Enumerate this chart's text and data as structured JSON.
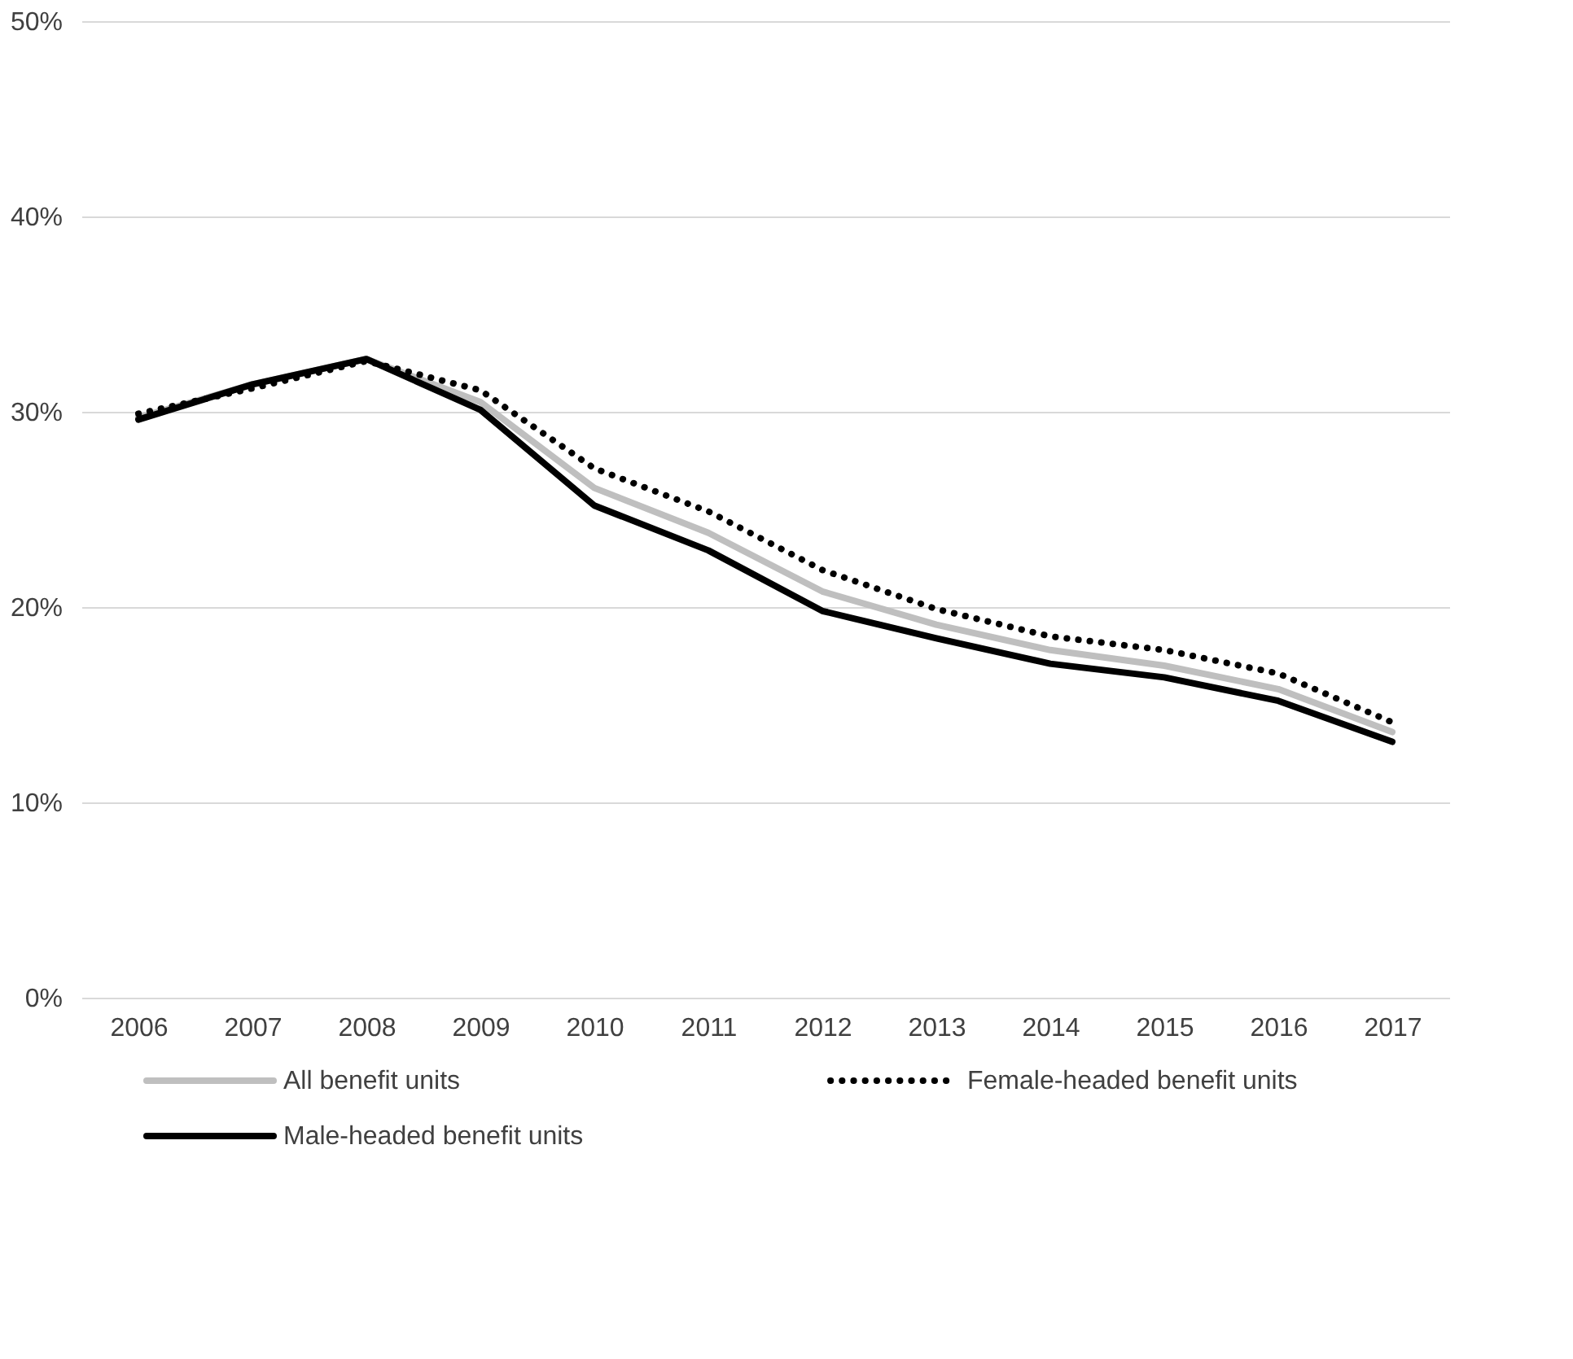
{
  "chart_data": {
    "type": "line",
    "categories": [
      "2006",
      "2007",
      "2008",
      "2009",
      "2010",
      "2011",
      "2012",
      "2013",
      "2014",
      "2015",
      "2016",
      "2017"
    ],
    "series": [
      {
        "name": "All benefit units",
        "color": "#bfbfbf",
        "line_style": "solid",
        "values": [
          29.7,
          31.4,
          32.7,
          30.5,
          26.1,
          23.8,
          20.8,
          19.1,
          17.8,
          17.0,
          15.8,
          13.6
        ]
      },
      {
        "name": "Female-headed benefit units",
        "color": "#000000",
        "line_style": "dotted",
        "values": [
          29.9,
          31.2,
          32.6,
          31.1,
          27.1,
          24.9,
          21.9,
          19.9,
          18.5,
          17.8,
          16.6,
          14.1
        ]
      },
      {
        "name": "Male-headed benefit units",
        "color": "#000000",
        "line_style": "solid",
        "values": [
          29.6,
          31.4,
          32.7,
          30.1,
          25.2,
          22.9,
          19.8,
          18.4,
          17.1,
          16.4,
          15.2,
          13.1
        ]
      }
    ],
    "ylim": [
      0,
      50
    ],
    "yticks": [
      {
        "value": 0,
        "label": "0%"
      },
      {
        "value": 10,
        "label": "10%"
      },
      {
        "value": 20,
        "label": "20%"
      },
      {
        "value": 30,
        "label": "30%"
      },
      {
        "value": 40,
        "label": "40%"
      },
      {
        "value": 50,
        "label": "50%"
      }
    ],
    "grid": "y",
    "legend": "bottom",
    "marker": "none"
  }
}
